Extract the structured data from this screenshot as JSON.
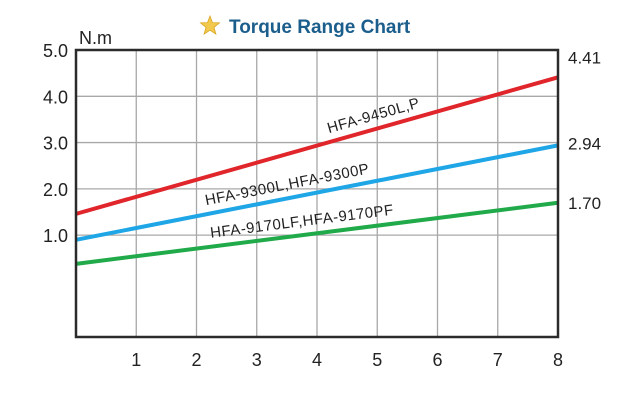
{
  "chart_data": {
    "type": "line",
    "title": "Torque Range Chart",
    "title_icon": "star-icon",
    "ylabel": "N.m",
    "xlabel": "",
    "x_ticks": [
      1,
      2,
      3,
      4,
      5,
      6,
      7,
      8
    ],
    "y_ticks": [
      1.0,
      2.0,
      3.0,
      4.0,
      5.0
    ],
    "y_tick_labels": [
      "1.0",
      "2.0",
      "3.0",
      "4.0",
      "5.0"
    ],
    "xlim": [
      0,
      8
    ],
    "ylim": [
      -1.2,
      5.0
    ],
    "grid": true,
    "series": [
      {
        "name": "HFA-9450L,P",
        "color": "#e0252b",
        "x": [
          0,
          8
        ],
        "y": [
          1.46,
          4.41
        ],
        "end_label": "4.41"
      },
      {
        "name": "HFA-9300L,HFA-9300P",
        "color": "#1ea6e6",
        "x": [
          0,
          8
        ],
        "y": [
          0.9,
          2.94
        ],
        "end_label": "2.94"
      },
      {
        "name": "HFA-9170LF,HFA-9170PF",
        "color": "#20aa4a",
        "x": [
          0,
          8
        ],
        "y": [
          0.38,
          1.7
        ],
        "end_label": "1.70"
      }
    ]
  },
  "colors": {
    "title": "#1b5e8c",
    "star": "#f2c94c",
    "grid": "#a8a8a8",
    "frame": "#2b2b2b"
  }
}
